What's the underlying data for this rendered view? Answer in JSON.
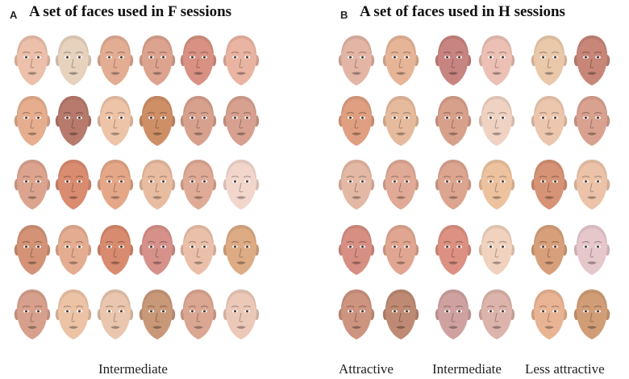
{
  "panel_a": {
    "letter": "A",
    "title": "A set of faces used in F sessions",
    "caption": "Intermediate",
    "rows": [
      [
        "#ecc0aa",
        "#e7d2be",
        "#e3ad94",
        "#dca38f",
        "#d89182",
        "#eab4a2"
      ],
      [
        "#e6ae8e",
        "#b77a6c",
        "#eec4a8",
        "#ce8f67",
        "#d7a18d",
        "#d7a08f"
      ],
      [
        "#dca48f",
        "#d98c70",
        "#e4a788",
        "#e8bca0",
        "#dfab96",
        "#f2d6cc"
      ],
      [
        "#d49376",
        "#e4ad91",
        "#d88b6f",
        "#d6918b",
        "#ebc0aa",
        "#ddab84"
      ],
      [
        "#d7a08c",
        "#edc3a6",
        "#e9c6ad",
        "#c99879",
        "#dba792",
        "#ecc8b8"
      ]
    ]
  },
  "panel_b": {
    "letter": "B",
    "title": "A set of faces used in H sessions",
    "rows": [
      [
        "#e2b5a5",
        "#e6b597",
        "#c88480",
        "#ecc0b4",
        "#eac8aa",
        "#c78678"
      ],
      [
        "#df9f80",
        "#e6ba9c",
        "#d7a08a",
        "#efd2c2",
        "#ecc7ae",
        "#d9a190"
      ],
      [
        "#e3b8a4",
        "#e1aa96",
        "#dca590",
        "#edc29f",
        "#d69376",
        "#ecc3a8"
      ],
      [
        "#d78f83",
        "#e1a691",
        "#dc9183",
        "#f0d2be",
        "#d7a07b",
        "#e6c7cc"
      ],
      [
        "#cd9480",
        "#bf8a73",
        "#cfa2a1",
        "#dcb4ab",
        "#e8b493",
        "#d19d76"
      ]
    ],
    "groups": [
      {
        "label": "Attractive"
      },
      {
        "label": "Intermediate"
      },
      {
        "label": "Less attractive"
      }
    ]
  }
}
